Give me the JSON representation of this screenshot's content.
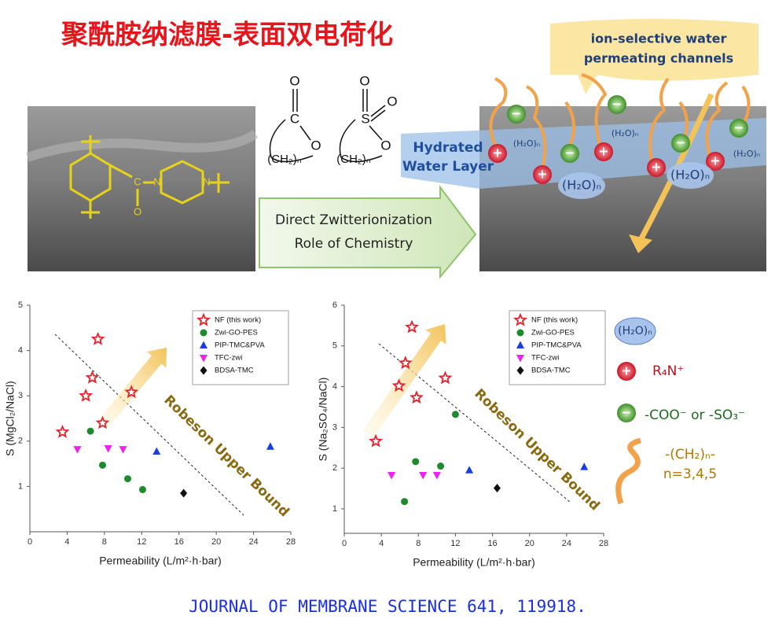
{
  "title": "聚酰胺纳滤膜-表面双电荷化",
  "citation": "JOURNAL OF MEMBRANE SCIENCE 641, 119918.",
  "diagram": {
    "molecule": {
      "c": "C",
      "o": "O",
      "n1": "N",
      "n2": "N"
    },
    "carboxyl": {
      "o_top": "O",
      "c": "C",
      "o": "O",
      "chain": "(CH₂)ₙ"
    },
    "sulfonate": {
      "o_top": "O",
      "s": "S",
      "o_right": "O",
      "o": "O",
      "chain": "(CH₂)ₙ"
    },
    "arrow_text": [
      "Direct Zwitterionization",
      "Role of Chemistry"
    ],
    "hydrated_layer": [
      "Hydrated",
      "Water Layer"
    ],
    "channel_label": [
      "ion-selective water",
      "permeating channels"
    ],
    "water_label": "(H₂O)ₙ",
    "plus": "+",
    "minus": "−"
  },
  "legend_panel": {
    "water": "(H₂O)ₙ",
    "cation": "R₄N⁺",
    "anion": "-COO⁻ or -SO₃⁻",
    "chain": "-(CH₂)ₙ-",
    "chain_n": "n=3,4,5"
  },
  "chart_data": [
    {
      "type": "scatter",
      "xlabel": "Permeability (L/m²·h·bar)",
      "ylabel": "S (MgCl₂/NaCl)",
      "xlim": [
        0,
        28
      ],
      "ylim": [
        0,
        5
      ],
      "xticks": [
        0,
        4,
        8,
        12,
        16,
        20,
        24,
        28
      ],
      "yticks": [
        1,
        2,
        3,
        4,
        5
      ],
      "legend": "upper right",
      "annotation": "Robeson Upper Bound",
      "series": [
        {
          "name": "NF (this work)",
          "color": "#e8202a",
          "marker": "star",
          "x": [
            3.5,
            6.0,
            6.7,
            7.3,
            7.8,
            10.9
          ],
          "y": [
            2.2,
            3.0,
            3.4,
            4.25,
            2.4,
            3.08
          ]
        },
        {
          "name": "Zwi-GO-PES",
          "color": "#1e8a2e",
          "marker": "circle",
          "x": [
            6.5,
            7.8,
            10.5,
            12.1
          ],
          "y": [
            2.22,
            1.47,
            1.17,
            0.93
          ]
        },
        {
          "name": "PIP-TMC&PVA",
          "color": "#1a3fe0",
          "marker": "triangle",
          "x": [
            13.6,
            25.8
          ],
          "y": [
            1.77,
            1.88
          ]
        },
        {
          "name": "TFC-zwi",
          "color": "#f020f0",
          "marker": "triangle-down",
          "x": [
            5.1,
            8.4,
            10.0
          ],
          "y": [
            1.82,
            1.84,
            1.82
          ]
        },
        {
          "name": "BDSA-TMC",
          "color": "#111111",
          "marker": "diamond",
          "x": [
            16.5
          ],
          "y": [
            0.85
          ]
        }
      ]
    },
    {
      "type": "scatter",
      "xlabel": "Permeability (L/m²·h·bar)",
      "ylabel": "S (Na₂SO₄/NaCl)",
      "xlim": [
        0,
        28
      ],
      "ylim": [
        0.4,
        6
      ],
      "xticks": [
        0,
        4,
        8,
        12,
        16,
        20,
        24,
        28
      ],
      "yticks": [
        1,
        2,
        3,
        4,
        5,
        6
      ],
      "legend": "upper right",
      "annotation": "Robeson Upper Bound",
      "series": [
        {
          "name": "NF (this work)",
          "color": "#e8202a",
          "marker": "star",
          "x": [
            3.4,
            5.9,
            6.6,
            7.3,
            7.8,
            10.9
          ],
          "y": [
            2.66,
            4.02,
            4.58,
            5.46,
            3.73,
            4.21
          ]
        },
        {
          "name": "Zwi-GO-PES",
          "color": "#1e8a2e",
          "marker": "circle",
          "x": [
            6.5,
            7.7,
            10.4,
            12.0
          ],
          "y": [
            1.18,
            2.16,
            2.05,
            3.32
          ]
        },
        {
          "name": "PIP-TMC&PVA",
          "color": "#1a3fe0",
          "marker": "triangle",
          "x": [
            13.5,
            25.9
          ],
          "y": [
            1.95,
            2.03
          ]
        },
        {
          "name": "TFC-zwi",
          "color": "#f020f0",
          "marker": "triangle-down",
          "x": [
            5.1,
            8.5,
            10.0
          ],
          "y": [
            1.83,
            1.83,
            1.83
          ]
        },
        {
          "name": "BDSA-TMC",
          "color": "#111111",
          "marker": "diamond",
          "x": [
            16.5
          ],
          "y": [
            1.51
          ]
        }
      ]
    }
  ]
}
